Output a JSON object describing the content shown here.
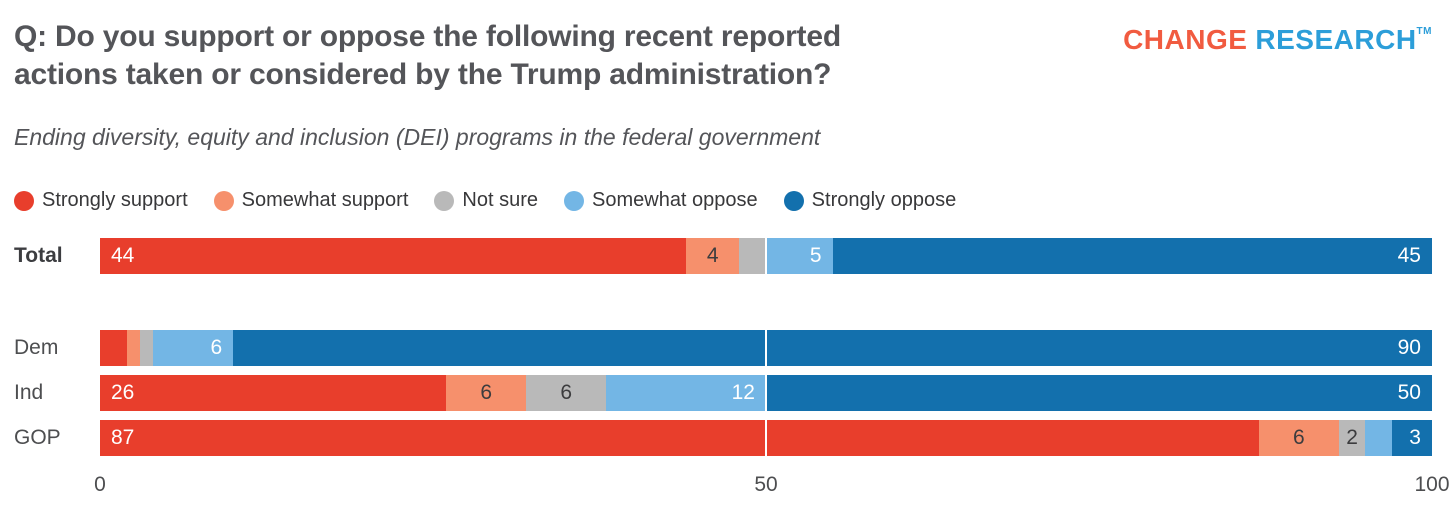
{
  "header": {
    "title_lines": [
      "Q: Do you support or oppose the following recent reported",
      "actions taken or considered by the Trump administration?"
    ],
    "subtitle": "Ending diversity, equity and inclusion (DEI) programs in the federal government",
    "logo": {
      "part1": "CHANGE",
      "part2": "RESEARCH",
      "tm": "TM",
      "color1": "#f15b40",
      "color2": "#2c9ed9"
    }
  },
  "legend": [
    {
      "label": "Strongly support",
      "color": "#e83e2c"
    },
    {
      "label": "Somewhat support",
      "color": "#f6906c"
    },
    {
      "label": "Not sure",
      "color": "#b9b9b9"
    },
    {
      "label": "Somewhat oppose",
      "color": "#73b6e5"
    },
    {
      "label": "Strongly oppose",
      "color": "#1370ad"
    }
  ],
  "chart_data": {
    "type": "bar",
    "stacked": true,
    "orientation": "horizontal",
    "title": "Q: Do you support or oppose the following recent reported actions taken or considered by the Trump administration?",
    "subtitle": "Ending diversity, equity and inclusion (DEI) programs in the federal government",
    "categories": [
      "Total",
      "Dem",
      "Ind",
      "GOP"
    ],
    "emphasized_category": "Total",
    "series": [
      {
        "name": "Strongly support",
        "color": "#e83e2c",
        "label_color": "#ffffff",
        "values": [
          44,
          2,
          26,
          87
        ],
        "labels": [
          "44",
          "",
          "26",
          "87"
        ]
      },
      {
        "name": "Somewhat support",
        "color": "#f6906c",
        "label_color": "#3c3c3e",
        "values": [
          4,
          1,
          6,
          6
        ],
        "labels": [
          "4",
          "",
          "6",
          "6"
        ]
      },
      {
        "name": "Not sure",
        "color": "#b9b9b9",
        "label_color": "#3c3c3e",
        "values": [
          2,
          1,
          6,
          2
        ],
        "labels": [
          "",
          "",
          "6",
          "2"
        ]
      },
      {
        "name": "Somewhat oppose",
        "color": "#73b6e5",
        "label_color": "#ffffff",
        "values": [
          5,
          6,
          12,
          2
        ],
        "labels": [
          "5",
          "6",
          "12",
          ""
        ]
      },
      {
        "name": "Strongly oppose",
        "color": "#1370ad",
        "label_color": "#ffffff",
        "values": [
          45,
          90,
          50,
          3
        ],
        "labels": [
          "45",
          "90",
          "50",
          "3"
        ]
      }
    ],
    "xlim": [
      0,
      100
    ],
    "xticks": [
      0,
      50,
      100
    ],
    "gridlines": {
      "positions": [
        50
      ],
      "color": "#ffffff"
    },
    "legend_position": "top",
    "xlabel": "",
    "ylabel": ""
  }
}
